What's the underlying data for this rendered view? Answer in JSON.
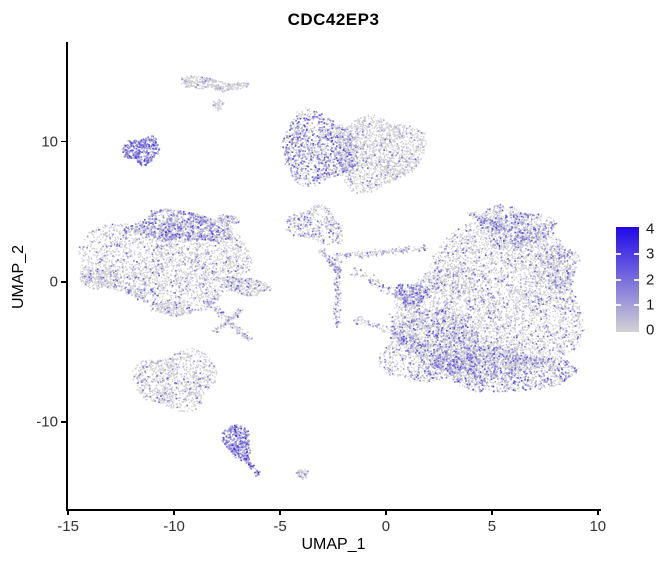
{
  "chart_data": {
    "type": "scatter",
    "title": "CDC42EP3",
    "xlabel": "UMAP_1",
    "ylabel": "UMAP_2",
    "xlim": [
      -15.1,
      10.15
    ],
    "ylim": [
      -16.2,
      17.1
    ],
    "x_ticks": [
      -15,
      -10,
      -5,
      0,
      5,
      10
    ],
    "y_ticks": [
      -10,
      0,
      10
    ],
    "grid": false,
    "legend": {
      "position": "right",
      "ticks": [
        0,
        1,
        2,
        3,
        4
      ],
      "low_color": "#d3d3d3",
      "high_color": "#2008e8",
      "min": 0,
      "max": 4
    },
    "point_color_low": "#d3d3d3",
    "point_color_high": "#2008e8",
    "clusters": [
      {
        "name": "top-wing-left",
        "cx": -8.7,
        "cy": 14.2,
        "rx": 1.05,
        "ry": 0.45,
        "rot": -6,
        "n": 240,
        "pf": 0.05,
        "pi": 0.5,
        "edge": 0.35
      },
      {
        "name": "top-wing-right",
        "cx": -7.2,
        "cy": 13.9,
        "rx": 0.85,
        "ry": 0.22,
        "rot": 14,
        "n": 110,
        "pf": 0.05,
        "pi": 0.5,
        "edge": 0.3
      },
      {
        "name": "top-wing-node",
        "cx": -7.9,
        "cy": 12.6,
        "rx": 0.28,
        "ry": 0.45,
        "rot": 0,
        "n": 55,
        "pf": 0.06,
        "pi": 0.5,
        "edge": 0.2
      },
      {
        "name": "left-purple-small",
        "cx": -11.5,
        "cy": 9.4,
        "rx": 0.8,
        "ry": 1.0,
        "rot": -25,
        "n": 400,
        "pf": 0.8,
        "pi": 0.8,
        "edge": 0.3
      },
      {
        "name": "topmid-left",
        "cx": -3.2,
        "cy": 9.5,
        "rx": 1.8,
        "ry": 2.5,
        "rot": 8,
        "n": 1300,
        "pf": 0.4,
        "pi": 0.75,
        "edge": 0.2
      },
      {
        "name": "topmid-right",
        "cx": -0.4,
        "cy": 9.2,
        "rx": 2.1,
        "ry": 2.6,
        "rot": -5,
        "n": 1750,
        "pf": 0.1,
        "pi": 0.55,
        "edge": 0.2
      },
      {
        "name": "left-main",
        "cx": -10.3,
        "cy": 1.4,
        "rx": 3.9,
        "ry": 3.3,
        "rot": 4,
        "n": 2900,
        "pf": 0.15,
        "pi": 0.6,
        "edge": 0.22
      },
      {
        "name": "left-main-top-purple",
        "cx": -9.7,
        "cy": 3.9,
        "rx": 2.1,
        "ry": 1.15,
        "rot": -8,
        "n": 820,
        "pf": 0.48,
        "pi": 0.75,
        "edge": 0.25
      },
      {
        "name": "left-main-west-point",
        "cx": -13.6,
        "cy": 0.3,
        "rx": 0.9,
        "ry": 0.75,
        "rot": 20,
        "n": 240,
        "pf": 0.1,
        "pi": 0.5,
        "edge": 0.3
      },
      {
        "name": "left-main-ne-point",
        "cx": -7.5,
        "cy": 4.4,
        "rx": 0.5,
        "ry": 0.4,
        "rot": 0,
        "n": 90,
        "pf": 0.3,
        "pi": 0.6,
        "edge": 0.3
      },
      {
        "name": "left-main-south-tip",
        "cx": -10.0,
        "cy": -1.9,
        "rx": 1.0,
        "ry": 0.5,
        "rot": 0,
        "n": 160,
        "pf": 0.12,
        "pi": 0.5,
        "edge": 0.3
      },
      {
        "name": "left-main-east-arm",
        "cx": -6.6,
        "cy": -0.3,
        "rx": 1.15,
        "ry": 0.6,
        "rot": -18,
        "n": 300,
        "pf": 0.18,
        "pi": 0.6,
        "edge": 0.3
      },
      {
        "name": "left-bottom",
        "cx": -9.9,
        "cy": -7.0,
        "rx": 1.95,
        "ry": 2.05,
        "rot": 0,
        "n": 1050,
        "pf": 0.12,
        "pi": 0.55,
        "edge": 0.25
      },
      {
        "name": "bottom-tadpole",
        "cx": -7.0,
        "cy": -11.4,
        "rx": 0.6,
        "ry": 1.35,
        "rot": 10,
        "n": 420,
        "pf": 0.72,
        "pi": 0.85,
        "edge": 0.25
      },
      {
        "name": "bottom-dot",
        "cx": -3.95,
        "cy": -13.7,
        "rx": 0.3,
        "ry": 0.35,
        "rot": 0,
        "n": 55,
        "pf": 0.12,
        "pi": 0.5,
        "edge": 0.2
      },
      {
        "name": "mid-triangle",
        "cx": -3.3,
        "cy": 4.0,
        "rx": 1.45,
        "ry": 1.15,
        "rot": -28,
        "n": 430,
        "pf": 0.22,
        "pi": 0.6,
        "edge": 0.35
      },
      {
        "name": "mid-purple-blob",
        "cx": 1.2,
        "cy": -0.9,
        "rx": 0.85,
        "ry": 0.8,
        "rot": 0,
        "n": 270,
        "pf": 0.5,
        "pi": 0.8,
        "edge": 0.3
      },
      {
        "name": "right-main",
        "cx": 5.0,
        "cy": -1.6,
        "rx": 4.35,
        "ry": 5.6,
        "rot": -8,
        "n": 5600,
        "pf": 0.16,
        "pi": 0.6,
        "edge": 0.16
      },
      {
        "name": "right-lower-left",
        "cx": 2.2,
        "cy": -4.6,
        "rx": 2.5,
        "ry": 2.5,
        "rot": 0,
        "n": 1500,
        "pf": 0.3,
        "pi": 0.7,
        "edge": 0.2
      },
      {
        "name": "right-bottom-band",
        "cx": 5.6,
        "cy": -6.3,
        "rx": 3.3,
        "ry": 1.5,
        "rot": -4,
        "n": 1400,
        "pf": 0.34,
        "pi": 0.7,
        "edge": 0.2
      },
      {
        "name": "right-peninsula",
        "cx": 6.1,
        "cy": 3.9,
        "rx": 1.85,
        "ry": 1.35,
        "rot": -22,
        "n": 760,
        "pf": 0.3,
        "pi": 0.7,
        "edge": 0.3
      },
      {
        "name": "right-east-bump",
        "cx": 8.2,
        "cy": 1.2,
        "rx": 0.9,
        "ry": 1.5,
        "rot": 0,
        "n": 340,
        "pf": 0.24,
        "pi": 0.6,
        "edge": 0.25
      }
    ],
    "strands": [
      {
        "name": "bridge-left-1",
        "x1": -8.5,
        "y1": -1.3,
        "x2": -6.4,
        "y2": -4.2,
        "w": 0.28,
        "n": 150,
        "pf": 0.22,
        "pi": 0.6
      },
      {
        "name": "bridge-left-2",
        "x1": -6.8,
        "y1": -2.0,
        "x2": -8.1,
        "y2": -3.6,
        "w": 0.22,
        "n": 90,
        "pf": 0.2,
        "pi": 0.6
      },
      {
        "name": "tadpole-tail",
        "x1": -6.7,
        "y1": -12.6,
        "x2": -6.0,
        "y2": -13.8,
        "w": 0.22,
        "n": 70,
        "pf": 0.6,
        "pi": 0.8
      },
      {
        "name": "mid-vertical-chain",
        "x1": -2.3,
        "y1": 2.0,
        "x2": -2.3,
        "y2": -3.2,
        "w": 0.25,
        "n": 150,
        "pf": 0.25,
        "pi": 0.6
      },
      {
        "name": "mid-diagonal",
        "x1": -3.1,
        "y1": 2.4,
        "x2": -2.3,
        "y2": 0.8,
        "w": 0.25,
        "n": 80,
        "pf": 0.2,
        "pi": 0.6
      },
      {
        "name": "band-mid-to-right",
        "x1": -2.4,
        "y1": 1.8,
        "x2": 1.9,
        "y2": 2.4,
        "w": 0.35,
        "n": 200,
        "pf": 0.15,
        "pi": 0.55
      },
      {
        "name": "peninsula-beak",
        "x1": 3.9,
        "y1": 4.9,
        "x2": 5.5,
        "y2": 3.9,
        "w": 0.3,
        "n": 90,
        "pf": 0.3,
        "pi": 0.7
      },
      {
        "name": "bridge-sparse-1",
        "x1": -1.6,
        "y1": 0.9,
        "x2": 1.5,
        "y2": -1.8,
        "w": 0.5,
        "n": 130,
        "pf": 0.3,
        "pi": 0.65
      },
      {
        "name": "bridge-sparse-2",
        "x1": -1.5,
        "y1": -2.6,
        "x2": 1.6,
        "y2": -4.3,
        "w": 0.4,
        "n": 110,
        "pf": 0.25,
        "pi": 0.6
      },
      {
        "name": "wing-dip",
        "x1": -8.1,
        "y1": 14.0,
        "x2": -7.6,
        "y2": 13.6,
        "w": 0.15,
        "n": 40,
        "pf": 0.05,
        "pi": 0.4
      }
    ]
  }
}
